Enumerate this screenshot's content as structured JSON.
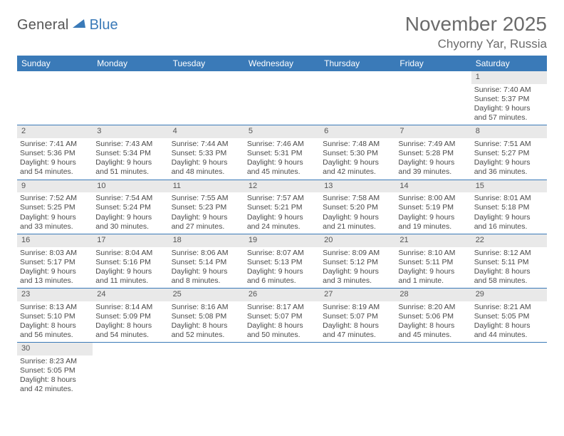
{
  "logo": {
    "general": "General",
    "blue": "Blue"
  },
  "header": {
    "title": "November 2025",
    "location": "Chyorny Yar, Russia"
  },
  "colors": {
    "header_bg": "#3a7ab8",
    "daynum_bg": "#e9e9e9",
    "row_border": "#3a7ab8",
    "text": "#4a4a4a",
    "title": "#6b6b6b"
  },
  "weekdays": [
    "Sunday",
    "Monday",
    "Tuesday",
    "Wednesday",
    "Thursday",
    "Friday",
    "Saturday"
  ],
  "weeks": [
    [
      null,
      null,
      null,
      null,
      null,
      null,
      {
        "n": "1",
        "sr": "7:40 AM",
        "ss": "5:37 PM",
        "dl": "9 hours and 57 minutes."
      }
    ],
    [
      {
        "n": "2",
        "sr": "7:41 AM",
        "ss": "5:36 PM",
        "dl": "9 hours and 54 minutes."
      },
      {
        "n": "3",
        "sr": "7:43 AM",
        "ss": "5:34 PM",
        "dl": "9 hours and 51 minutes."
      },
      {
        "n": "4",
        "sr": "7:44 AM",
        "ss": "5:33 PM",
        "dl": "9 hours and 48 minutes."
      },
      {
        "n": "5",
        "sr": "7:46 AM",
        "ss": "5:31 PM",
        "dl": "9 hours and 45 minutes."
      },
      {
        "n": "6",
        "sr": "7:48 AM",
        "ss": "5:30 PM",
        "dl": "9 hours and 42 minutes."
      },
      {
        "n": "7",
        "sr": "7:49 AM",
        "ss": "5:28 PM",
        "dl": "9 hours and 39 minutes."
      },
      {
        "n": "8",
        "sr": "7:51 AM",
        "ss": "5:27 PM",
        "dl": "9 hours and 36 minutes."
      }
    ],
    [
      {
        "n": "9",
        "sr": "7:52 AM",
        "ss": "5:25 PM",
        "dl": "9 hours and 33 minutes."
      },
      {
        "n": "10",
        "sr": "7:54 AM",
        "ss": "5:24 PM",
        "dl": "9 hours and 30 minutes."
      },
      {
        "n": "11",
        "sr": "7:55 AM",
        "ss": "5:23 PM",
        "dl": "9 hours and 27 minutes."
      },
      {
        "n": "12",
        "sr": "7:57 AM",
        "ss": "5:21 PM",
        "dl": "9 hours and 24 minutes."
      },
      {
        "n": "13",
        "sr": "7:58 AM",
        "ss": "5:20 PM",
        "dl": "9 hours and 21 minutes."
      },
      {
        "n": "14",
        "sr": "8:00 AM",
        "ss": "5:19 PM",
        "dl": "9 hours and 19 minutes."
      },
      {
        "n": "15",
        "sr": "8:01 AM",
        "ss": "5:18 PM",
        "dl": "9 hours and 16 minutes."
      }
    ],
    [
      {
        "n": "16",
        "sr": "8:03 AM",
        "ss": "5:17 PM",
        "dl": "9 hours and 13 minutes."
      },
      {
        "n": "17",
        "sr": "8:04 AM",
        "ss": "5:16 PM",
        "dl": "9 hours and 11 minutes."
      },
      {
        "n": "18",
        "sr": "8:06 AM",
        "ss": "5:14 PM",
        "dl": "9 hours and 8 minutes."
      },
      {
        "n": "19",
        "sr": "8:07 AM",
        "ss": "5:13 PM",
        "dl": "9 hours and 6 minutes."
      },
      {
        "n": "20",
        "sr": "8:09 AM",
        "ss": "5:12 PM",
        "dl": "9 hours and 3 minutes."
      },
      {
        "n": "21",
        "sr": "8:10 AM",
        "ss": "5:11 PM",
        "dl": "9 hours and 1 minute."
      },
      {
        "n": "22",
        "sr": "8:12 AM",
        "ss": "5:11 PM",
        "dl": "8 hours and 58 minutes."
      }
    ],
    [
      {
        "n": "23",
        "sr": "8:13 AM",
        "ss": "5:10 PM",
        "dl": "8 hours and 56 minutes."
      },
      {
        "n": "24",
        "sr": "8:14 AM",
        "ss": "5:09 PM",
        "dl": "8 hours and 54 minutes."
      },
      {
        "n": "25",
        "sr": "8:16 AM",
        "ss": "5:08 PM",
        "dl": "8 hours and 52 minutes."
      },
      {
        "n": "26",
        "sr": "8:17 AM",
        "ss": "5:07 PM",
        "dl": "8 hours and 50 minutes."
      },
      {
        "n": "27",
        "sr": "8:19 AM",
        "ss": "5:07 PM",
        "dl": "8 hours and 47 minutes."
      },
      {
        "n": "28",
        "sr": "8:20 AM",
        "ss": "5:06 PM",
        "dl": "8 hours and 45 minutes."
      },
      {
        "n": "29",
        "sr": "8:21 AM",
        "ss": "5:05 PM",
        "dl": "8 hours and 44 minutes."
      }
    ],
    [
      {
        "n": "30",
        "sr": "8:23 AM",
        "ss": "5:05 PM",
        "dl": "8 hours and 42 minutes."
      },
      null,
      null,
      null,
      null,
      null,
      null
    ]
  ],
  "labels": {
    "sunrise": "Sunrise:",
    "sunset": "Sunset:",
    "daylight": "Daylight:"
  }
}
